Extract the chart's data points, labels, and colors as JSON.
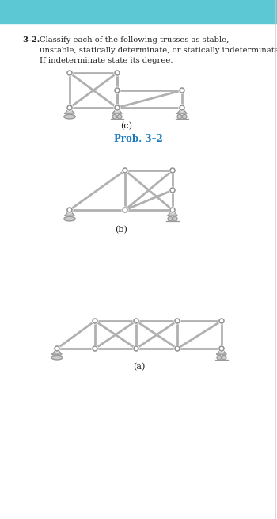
{
  "title_bar_color": "#5bc8d4",
  "title_bar_height": 29,
  "bg_color": "#ffffff",
  "problem_number": "3–2.",
  "problem_text": "Classify each of the following trusses as stable,\nunstable, statically determinate, or statically indeterminate.\nIf indeterminate state its degree.",
  "label_a": "(a)",
  "label_b": "(b)",
  "label_c": "(c)",
  "prob_label": "Prob. 3–2",
  "prob_label_color": "#1a7abf",
  "member_color": "#b0b0b0",
  "member_lw": 2.0,
  "joint_color": "#909090",
  "joint_r": 3.0,
  "support_color": "#999999",
  "text_color": "#222222",
  "page_bg": "#f5f5f5"
}
